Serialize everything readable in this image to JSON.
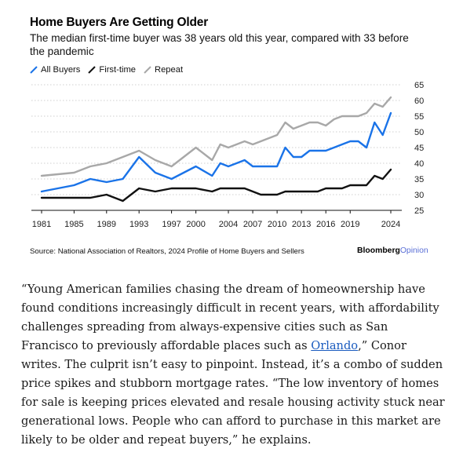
{
  "chart_data": {
    "type": "line",
    "title": "Home Buyers Are Getting Older",
    "subtitle": "The median first-time buyer was 38 years old this year, compared with 33 before the pandemic",
    "x_ticks": [
      "1981",
      "1985",
      "1989",
      "1993",
      "1997",
      "2000",
      "2004",
      "2007",
      "2010",
      "2013",
      "2016",
      "2019",
      "2024"
    ],
    "y_ticks": [
      25,
      30,
      35,
      40,
      45,
      50,
      55,
      60,
      65
    ],
    "ylim": [
      25,
      65
    ],
    "xlim": [
      1981,
      2024
    ],
    "grid": "horizontal",
    "legend_position": "top-left",
    "series": [
      {
        "name": "All Buyers",
        "color": "#1a73e8",
        "x": [
          1981,
          1985,
          1987,
          1989,
          1991,
          1993,
          1995,
          1997,
          2000,
          2002,
          2003,
          2004,
          2005,
          2006,
          2007,
          2008,
          2010,
          2011,
          2012,
          2013,
          2014,
          2015,
          2016,
          2017,
          2018,
          2019,
          2020,
          2021,
          2022,
          2023,
          2024
        ],
        "values": [
          31,
          33,
          35,
          34,
          35,
          42,
          37,
          35,
          39,
          36,
          40,
          39,
          40,
          41,
          39,
          39,
          39,
          45,
          42,
          42,
          44,
          44,
          44,
          45,
          46,
          47,
          47,
          45,
          53,
          49,
          56
        ]
      },
      {
        "name": "First-time",
        "color": "#111111",
        "x": [
          1981,
          1985,
          1987,
          1989,
          1991,
          1993,
          1995,
          1997,
          2000,
          2002,
          2003,
          2004,
          2005,
          2006,
          2007,
          2008,
          2010,
          2011,
          2012,
          2013,
          2014,
          2015,
          2016,
          2017,
          2018,
          2019,
          2020,
          2021,
          2022,
          2023,
          2024
        ],
        "values": [
          29,
          29,
          29,
          30,
          28,
          32,
          31,
          32,
          32,
          31,
          32,
          32,
          32,
          32,
          31,
          30,
          30,
          31,
          31,
          31,
          31,
          31,
          32,
          32,
          32,
          33,
          33,
          33,
          36,
          35,
          38
        ]
      },
      {
        "name": "Repeat",
        "color": "#a8a8a8",
        "x": [
          1981,
          1985,
          1987,
          1989,
          1991,
          1993,
          1995,
          1997,
          2000,
          2002,
          2003,
          2004,
          2005,
          2006,
          2007,
          2008,
          2010,
          2011,
          2012,
          2013,
          2014,
          2015,
          2016,
          2017,
          2018,
          2019,
          2020,
          2021,
          2022,
          2023,
          2024
        ],
        "values": [
          36,
          37,
          39,
          40,
          42,
          44,
          41,
          39,
          45,
          41,
          46,
          45,
          46,
          47,
          46,
          47,
          49,
          53,
          51,
          52,
          53,
          53,
          52,
          54,
          55,
          55,
          55,
          56,
          59,
          58,
          61
        ]
      }
    ]
  },
  "source": "Source: National Association of Realtors, 2024 Profile of Home Buyers and Sellers",
  "brand": {
    "name": "Bloomberg",
    "sub": "Opinion"
  },
  "article": {
    "before_link": "“Young American families chasing the dream of homeownership have found conditions increasingly difficult in recent years, with affordability challenges spreading from always-expensive cities such as San Francisco to previously affordable places such as ",
    "link_text": "Orlando",
    "after_link": ",” Conor writes. The culprit isn’t easy to pinpoint. Instead, it’s a combo of sudden price spikes and stubborn mortgage rates. “The low inventory of homes for sale is keeping prices elevated and resale housing activity stuck near generational lows. People who can afford to purchase in this market are likely to be older and repeat buyers,” he explains."
  }
}
